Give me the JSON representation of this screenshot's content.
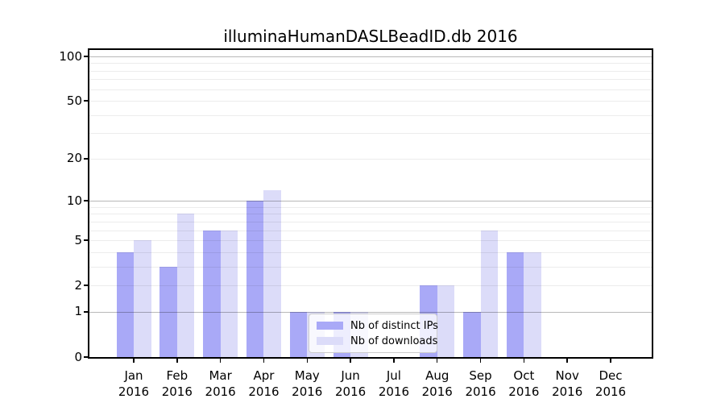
{
  "chart_data": {
    "type": "bar",
    "title": "illuminaHumanDASLBeadID.db 2016",
    "months": [
      "Jan",
      "Feb",
      "Mar",
      "Apr",
      "May",
      "Jun",
      "Jul",
      "Aug",
      "Sep",
      "Oct",
      "Nov",
      "Dec"
    ],
    "year": "2016",
    "categories": [
      "Jan 2016",
      "Feb 2016",
      "Mar 2016",
      "Apr 2016",
      "May 2016",
      "Jun 2016",
      "Jul 2016",
      "Aug 2016",
      "Sep 2016",
      "Oct 2016",
      "Nov 2016",
      "Dec 2016"
    ],
    "series": [
      {
        "name": "Nb of distinct IPs",
        "color": "#a9a9f7",
        "values": [
          4,
          3,
          6,
          10,
          1,
          1,
          0,
          2,
          1,
          4,
          0,
          0
        ]
      },
      {
        "name": "Nb of downloads",
        "color": "#dcdcf9",
        "values": [
          5,
          8,
          6,
          12,
          1,
          1,
          0,
          2,
          6,
          4,
          0,
          0
        ]
      }
    ],
    "yscale": "log1p",
    "ylim": [
      0,
      113
    ],
    "yticks": [
      0,
      1,
      2,
      5,
      10,
      20,
      50,
      100
    ],
    "gridlines": {
      "major": [
        1,
        10,
        100
      ],
      "minor": [
        2,
        3,
        4,
        5,
        6,
        7,
        8,
        9,
        20,
        30,
        40,
        50,
        60,
        70,
        80,
        90
      ]
    },
    "grid": true,
    "legend_position": "lower center"
  }
}
